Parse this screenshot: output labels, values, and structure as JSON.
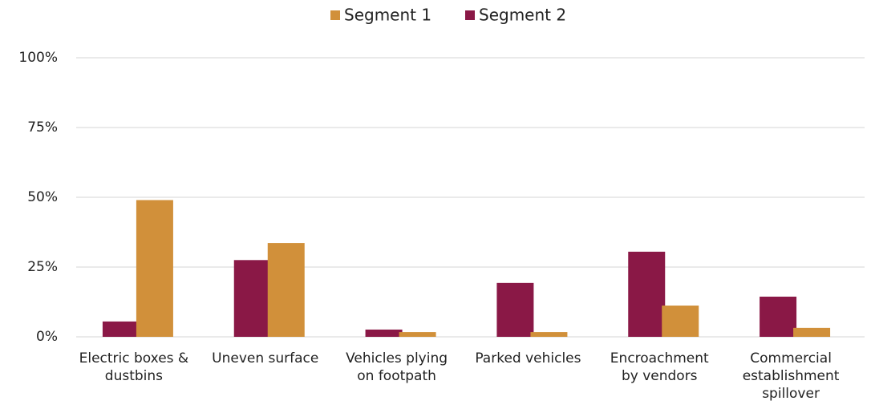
{
  "chart_data": {
    "type": "bar",
    "categories": [
      "Electric boxes &\ndustbins",
      "Uneven surface",
      "Vehicles plying\non footpath",
      "Parked vehicles",
      "Encroachment\nby vendors",
      "Commercial\nestablishment\nspillover"
    ],
    "series": [
      {
        "name": "Segment 1",
        "color": "#d1903a",
        "values": [
          49,
          33.6,
          1.7,
          1.7,
          11.2,
          3.2
        ]
      },
      {
        "name": "Segment 2",
        "color": "#8a1846",
        "values": [
          5.5,
          27.5,
          2.6,
          19.3,
          30.5,
          14.4
        ]
      }
    ],
    "ylim": [
      0,
      100
    ],
    "yticks": [
      {
        "value": 0,
        "label": "0%"
      },
      {
        "value": 25,
        "label": "25%"
      },
      {
        "value": 50,
        "label": "50%"
      },
      {
        "value": 75,
        "label": "75%"
      },
      {
        "value": 100,
        "label": "100%"
      }
    ],
    "grid": true
  }
}
